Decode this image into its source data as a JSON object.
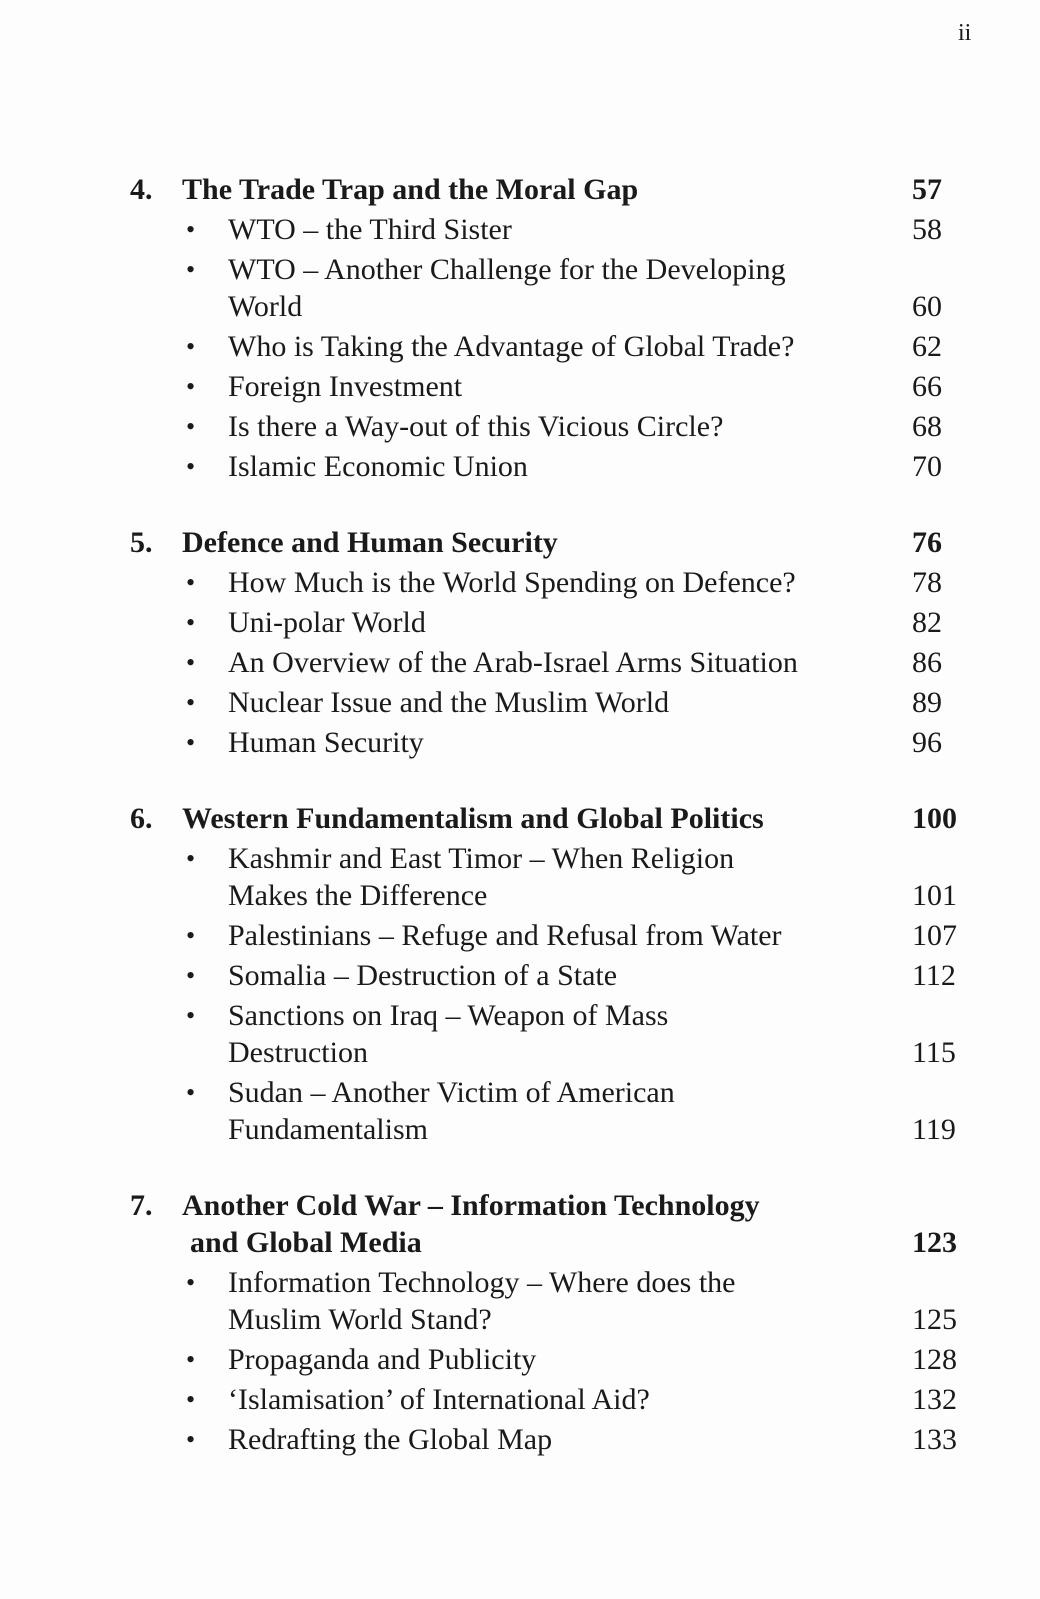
{
  "page_number": "ii",
  "chapters": [
    {
      "number": "4.",
      "title_lines": [
        "The Trade Trap and the Moral Gap"
      ],
      "page": "57",
      "items": [
        {
          "lines": [
            "WTO – the Third Sister"
          ],
          "page": "58"
        },
        {
          "lines": [
            "WTO – Another Challenge for the Developing",
            "World"
          ],
          "page": "60"
        },
        {
          "lines": [
            "Who is Taking the Advantage of Global Trade?"
          ],
          "page": "62"
        },
        {
          "lines": [
            "Foreign Investment"
          ],
          "page": "66"
        },
        {
          "lines": [
            "Is there a Way-out of this Vicious Circle?"
          ],
          "page": "68"
        },
        {
          "lines": [
            "Islamic Economic Union"
          ],
          "page": "70"
        }
      ]
    },
    {
      "number": "5.",
      "title_lines": [
        "Defence and Human Security"
      ],
      "page": "76",
      "items": [
        {
          "lines": [
            "How Much is the World Spending on Defence?"
          ],
          "page": "78"
        },
        {
          "lines": [
            "Uni-polar World"
          ],
          "page": "82"
        },
        {
          "lines": [
            "An Overview of the Arab-Israel Arms Situation"
          ],
          "page": "86"
        },
        {
          "lines": [
            "Nuclear Issue and the Muslim World"
          ],
          "page": "89"
        },
        {
          "lines": [
            "Human Security"
          ],
          "page": "96"
        }
      ]
    },
    {
      "number": "6.",
      "title_lines": [
        "Western Fundamentalism and Global Politics"
      ],
      "page": "100",
      "items": [
        {
          "lines": [
            "Kashmir and East Timor – When Religion",
            "Makes the Difference"
          ],
          "page": "101"
        },
        {
          "lines": [
            "Palestinians – Refuge and Refusal from Water"
          ],
          "page": "107"
        },
        {
          "lines": [
            "Somalia – Destruction of a State"
          ],
          "page": "112"
        },
        {
          "lines": [
            "Sanctions on Iraq – Weapon of Mass",
            "Destruction"
          ],
          "page": "115"
        },
        {
          "lines": [
            "Sudan – Another Victim of American",
            "Fundamentalism"
          ],
          "page": "119"
        }
      ]
    },
    {
      "number": "7.",
      "title_lines": [
        "Another Cold War – Information Technology",
        "and Global Media"
      ],
      "page": "123",
      "items": [
        {
          "lines": [
            "Information Technology – Where does the",
            "Muslim World Stand?"
          ],
          "page": "125"
        },
        {
          "lines": [
            "Propaganda and Publicity"
          ],
          "page": "128"
        },
        {
          "lines": [
            "‘Islamisation’ of International Aid?"
          ],
          "page": "132"
        },
        {
          "lines": [
            "Redrafting the Global Map"
          ],
          "page": "133"
        }
      ]
    }
  ]
}
